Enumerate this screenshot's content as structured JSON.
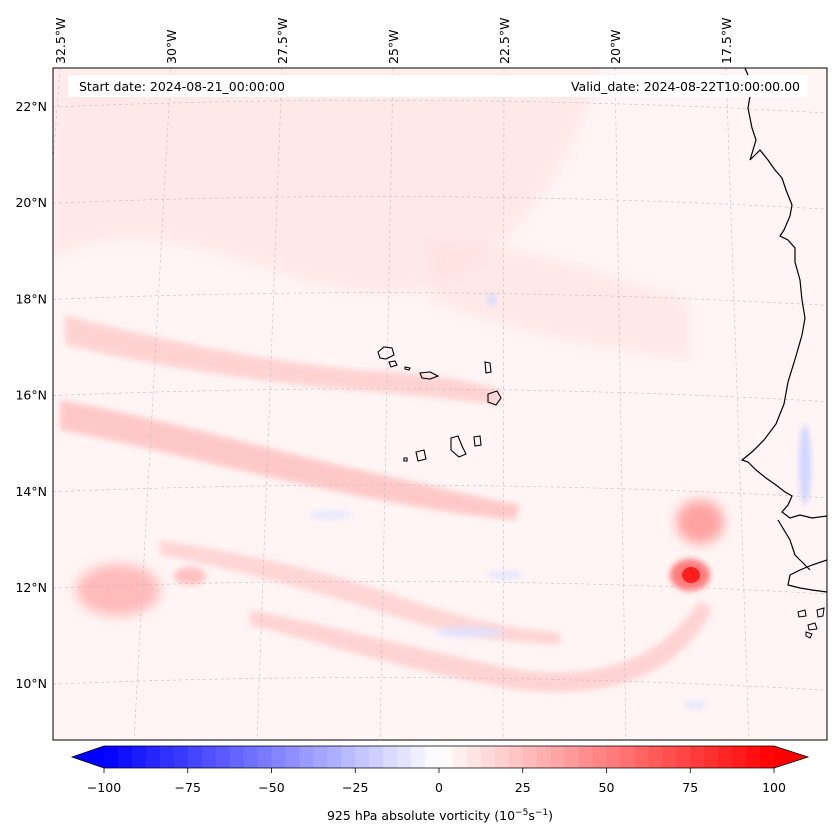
{
  "map": {
    "start_date_label": "Start date: 2024-08-21_00:00:00",
    "valid_date_label": "Valid_date: 2024-08-22T10:00:00.00",
    "lon_labels": [
      {
        "value": -32.5,
        "text": "32.5°W"
      },
      {
        "value": -30.0,
        "text": "30°W"
      },
      {
        "value": -27.5,
        "text": "27.5°W"
      },
      {
        "value": -25.0,
        "text": "25°W"
      },
      {
        "value": -22.5,
        "text": "22.5°W"
      },
      {
        "value": -20.0,
        "text": "20°W"
      },
      {
        "value": -17.5,
        "text": "17.5°W"
      }
    ],
    "lat_labels": [
      {
        "value": 22,
        "text": "22°N"
      },
      {
        "value": 20,
        "text": "20°N"
      },
      {
        "value": 18,
        "text": "18°N"
      },
      {
        "value": 16,
        "text": "16°N"
      },
      {
        "value": 14,
        "text": "14°N"
      },
      {
        "value": 12,
        "text": "12°N"
      },
      {
        "value": 10,
        "text": "10°N"
      }
    ],
    "field_features": [
      {
        "kind": "band",
        "name": "northern-vorticity-band",
        "lon": [
          -32.5,
          -19.0
        ],
        "lat": [
          17.2,
          15.8
        ],
        "value": 12
      },
      {
        "kind": "band",
        "name": "central-vorticity-band",
        "lon": [
          -31.5,
          -19.5
        ],
        "lat": [
          15.6,
          13.9
        ],
        "value": 15
      },
      {
        "kind": "band",
        "name": "southern-vorticity-band",
        "lon": [
          -28.5,
          -19.5
        ],
        "lat": [
          12.7,
          11.1
        ],
        "value": 10
      },
      {
        "kind": "blob",
        "name": "coastal-vortex-north",
        "lon": -17.2,
        "lat": 13.3,
        "value": 45
      },
      {
        "kind": "blob",
        "name": "coastal-vortex-south",
        "lon": -17.4,
        "lat": 12.3,
        "value": 95
      },
      {
        "kind": "blob",
        "name": "western-vortex",
        "lon": -31.0,
        "lat": 11.9,
        "value": 30
      },
      {
        "kind": "blob",
        "name": "coastal-negative-strip",
        "lon": -14.6,
        "lat": 14.6,
        "value": -30
      }
    ]
  },
  "colorbar": {
    "min": -100,
    "max": 100,
    "levels": 48,
    "colors": {
      "negative": "#0000ff",
      "zero": "#ffffff",
      "positive": "#ff0000"
    },
    "ticks": [
      {
        "value": -100,
        "text": "−100"
      },
      {
        "value": -75,
        "text": "−75"
      },
      {
        "value": -50,
        "text": "−50"
      },
      {
        "value": -25,
        "text": "−25"
      },
      {
        "value": 0,
        "text": "0"
      },
      {
        "value": 25,
        "text": "25"
      },
      {
        "value": 50,
        "text": "50"
      },
      {
        "value": 75,
        "text": "75"
      },
      {
        "value": 100,
        "text": "100"
      }
    ],
    "label_main": "925 hPa absolute vorticity (10",
    "label_exp1": "−5",
    "label_unit": "s",
    "label_exp2": "−1",
    "label_end": ")"
  }
}
